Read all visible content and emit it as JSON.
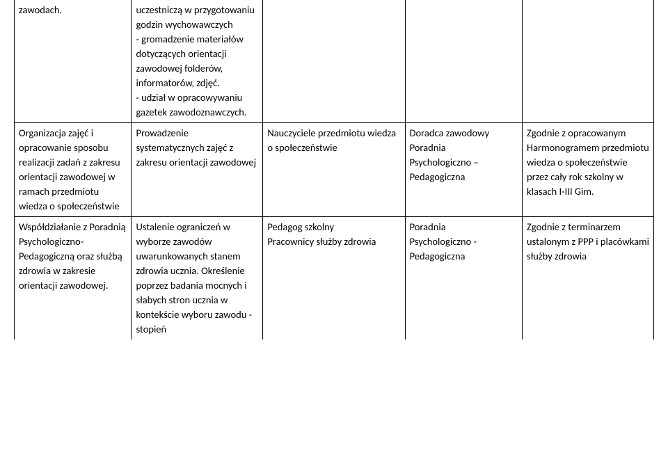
{
  "table": {
    "rows": [
      {
        "c1": "zawodach.",
        "c2": "uczestniczą w przygotowaniu godzin wychowawczych\n- gromadzenie materiałów dotyczących orientacji zawodowej folderów, informatorów, zdjęć.\n- udział w opracowywaniu gazetek zawodoznawczych.",
        "c3": "",
        "c4": "",
        "c5": ""
      },
      {
        "c1": "Organizacja zajęć i opracowanie sposobu realizacji zadań z zakresu orientacji zawodowej w ramach przedmiotu wiedza o społeczeństwie",
        "c2": "Prowadzenie systematycznych zajęć z zakresu orientacji zawodowej",
        "c3": "Nauczyciele przedmiotu wiedza o społeczeństwie",
        "c4": "Doradca zawodowy\nPoradnia\nPsychologiczno –\nPedagogiczna",
        "c5": "Zgodnie z opracowanym Harmonogramem przedmiotu wiedza o społeczeństwie przez cały rok szkolny w klasach I-III Gim."
      },
      {
        "c1": "Współdziałanie z Poradnią Psychologiczno-Pedagogiczną oraz służbą zdrowia w zakresie orientacji zawodowej.",
        "c2": "Ustalenie ograniczeń w wyborze zawodów uwarunkowanych stanem zdrowia ucznia. Określenie poprzez badania mocnych i słabych stron ucznia w kontekście wyboru zawodu - stopień",
        "c3": "Pedagog szkolny\nPracownicy służby zdrowia",
        "c4": "Poradnia\nPsychologiczno -\nPedagogiczna",
        "c5": "Zgodnie z terminarzem ustalonym z PPP i placówkami służby zdrowia"
      }
    ]
  }
}
